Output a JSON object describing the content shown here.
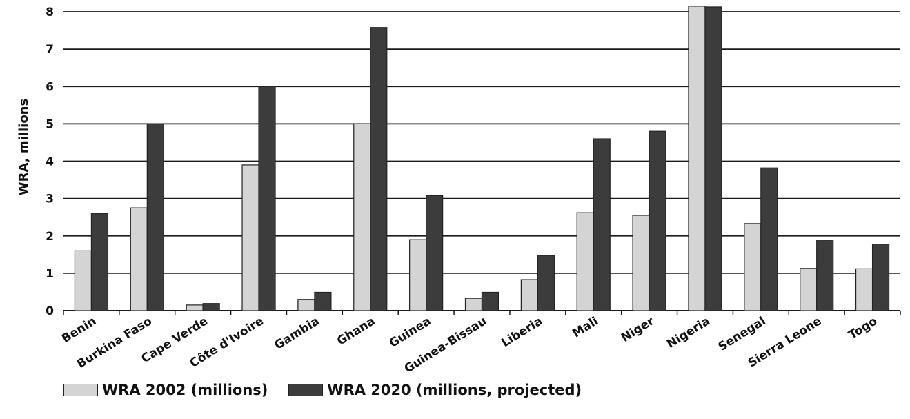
{
  "chart_data": {
    "type": "bar",
    "title": "",
    "ylabel": "WRA, millions",
    "xlabel": "",
    "ylim": [
      0,
      8
    ],
    "yticks": [
      "0",
      "1",
      "2",
      "3",
      "4",
      "5",
      "6",
      "7",
      "8"
    ],
    "grid": "horizontal",
    "legend_position": "bottom-left",
    "categories": [
      "Benin",
      "Burkina Faso",
      "Cape Verde",
      "Côte d'Ivoire",
      "Gambia",
      "Ghana",
      "Guinea",
      "Guinea-Bissau",
      "Liberia",
      "Mali",
      "Niger",
      "Nigeria",
      "Senegal",
      "Sierra Leone",
      "Togo"
    ],
    "series": [
      {
        "name": "WRA 2002 (millions)",
        "color": "#d4d4d4",
        "values": [
          1.6,
          2.75,
          0.15,
          3.9,
          0.3,
          5.0,
          1.9,
          0.33,
          0.83,
          2.62,
          2.55,
          8.15,
          2.33,
          1.13,
          1.12
        ]
      },
      {
        "name": "WRA 2020 (millions, projected)",
        "color": "#3c3c3c",
        "values": [
          2.6,
          5.0,
          0.19,
          6.0,
          0.49,
          7.58,
          3.08,
          0.49,
          1.48,
          4.6,
          4.8,
          8.13,
          3.82,
          1.89,
          1.78
        ]
      }
    ]
  }
}
